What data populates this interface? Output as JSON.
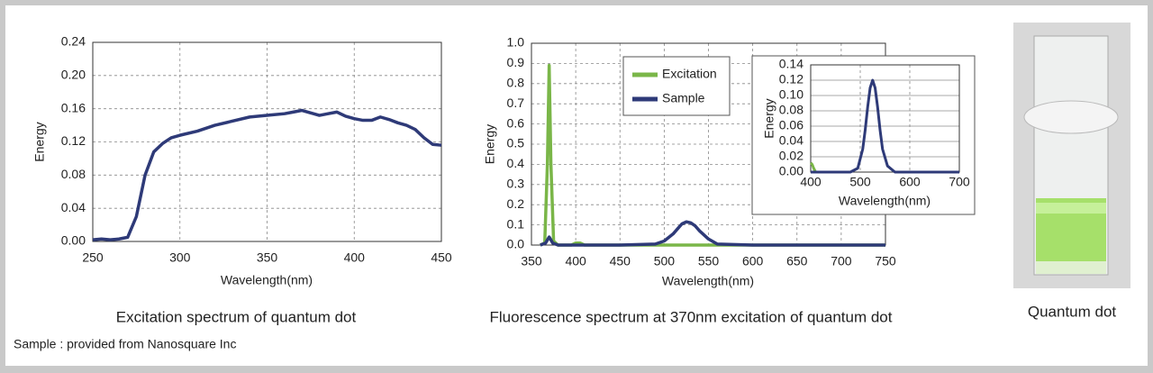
{
  "chart_data": [
    {
      "type": "line",
      "title": "Excitation spectrum of quantum dot",
      "x_label": "Wavelength(nm)",
      "y_label": "Energy",
      "color": "#2e3a78",
      "x": [
        250,
        255,
        260,
        265,
        270,
        275,
        280,
        285,
        290,
        295,
        300,
        310,
        320,
        330,
        340,
        350,
        360,
        365,
        370,
        375,
        380,
        385,
        390,
        395,
        400,
        405,
        410,
        415,
        420,
        425,
        430,
        435,
        440,
        445,
        450
      ],
      "values": [
        0.002,
        0.003,
        0.002,
        0.003,
        0.005,
        0.03,
        0.08,
        0.108,
        0.118,
        0.125,
        0.128,
        0.133,
        0.14,
        0.145,
        0.15,
        0.152,
        0.154,
        0.156,
        0.158,
        0.155,
        0.152,
        0.154,
        0.156,
        0.151,
        0.148,
        0.146,
        0.146,
        0.15,
        0.147,
        0.143,
        0.14,
        0.135,
        0.125,
        0.117,
        0.116
      ],
      "xlim": [
        250,
        450
      ],
      "xticks": [
        250,
        300,
        350,
        400,
        450
      ],
      "ylim": [
        0,
        0.24
      ],
      "yticks": [
        {
          "value": 0,
          "label": "0.00"
        },
        {
          "value": 0.04,
          "label": "0.04"
        },
        {
          "value": 0.08,
          "label": "0.08"
        },
        {
          "value": 0.12,
          "label": "0.12"
        },
        {
          "value": 0.16,
          "label": "0.16"
        },
        {
          "value": 0.2,
          "label": "0.20"
        },
        {
          "value": 0.24,
          "label": "0.24"
        }
      ],
      "grid": true
    },
    {
      "type": "line",
      "title": "Fluorescence spectrum at 370nm excitation of quantum dot",
      "x_label": "Wavelength(nm)",
      "y_label": "Energy",
      "legend": "upper left",
      "series": [
        {
          "name": "Excitation",
          "color": "#7ab648",
          "x": [
            360,
            365,
            368,
            370,
            372,
            375,
            380,
            395,
            400,
            405,
            410,
            450,
            500,
            550,
            600,
            650,
            700,
            750
          ],
          "values": [
            0,
            0.01,
            0.4,
            0.89,
            0.4,
            0.02,
            0,
            0,
            0.01,
            0.01,
            0,
            0,
            0,
            0,
            0,
            0,
            0,
            0
          ]
        },
        {
          "name": "Sample",
          "color": "#2e3a78",
          "x": [
            360,
            366,
            370,
            374,
            380,
            450,
            490,
            500,
            510,
            515,
            520,
            525,
            530,
            535,
            540,
            550,
            560,
            600,
            700,
            750
          ],
          "values": [
            0,
            0.01,
            0.04,
            0.01,
            0,
            0,
            0.005,
            0.02,
            0.055,
            0.08,
            0.105,
            0.115,
            0.11,
            0.095,
            0.07,
            0.03,
            0.005,
            0,
            0,
            0
          ]
        }
      ],
      "xlim": [
        350,
        750
      ],
      "xticks": [
        350,
        400,
        450,
        500,
        550,
        600,
        650,
        700,
        750
      ],
      "ylim": [
        0,
        1
      ],
      "yticks": [
        {
          "value": 0,
          "label": "0.0"
        },
        0.1,
        0.2,
        0.3,
        0.4,
        0.5,
        0.6,
        0.7,
        0.8,
        0.9,
        {
          "value": 1,
          "label": "1.0"
        }
      ],
      "grid": true
    },
    {
      "type": "line",
      "x_label": "Wavelength(nm)",
      "y_label": "Energy",
      "series": [
        {
          "color": "#7ab648",
          "x": [
            400,
            403,
            406,
            410
          ],
          "values": [
            0.012,
            0.01,
            0.005,
            0
          ]
        },
        {
          "color": "#2e3a78",
          "x": [
            400,
            480,
            495,
            505,
            510,
            515,
            520,
            525,
            530,
            535,
            540,
            545,
            555,
            570,
            700
          ],
          "values": [
            0,
            0,
            0.005,
            0.03,
            0.055,
            0.085,
            0.11,
            0.12,
            0.11,
            0.085,
            0.055,
            0.03,
            0.008,
            0,
            0
          ]
        }
      ],
      "xlim": [
        400,
        700
      ],
      "xticks": [
        400,
        500,
        600,
        700
      ],
      "ylim": [
        0,
        0.14
      ],
      "yticks": [
        {
          "value": 0,
          "label": "0.00"
        },
        {
          "value": 0.02,
          "label": "0.02"
        },
        {
          "value": 0.04,
          "label": "0.04"
        },
        {
          "value": 0.06,
          "label": "0.06"
        },
        {
          "value": 0.08,
          "label": "0.08"
        },
        {
          "value": 0.1,
          "label": "0.10"
        },
        {
          "value": 0.12,
          "label": "0.12"
        },
        {
          "value": 0.14,
          "label": "0.14"
        }
      ],
      "grid": true
    }
  ],
  "photo": {
    "caption": "Quantum dot"
  },
  "note": "Sample : provided from Nanosquare Inc"
}
